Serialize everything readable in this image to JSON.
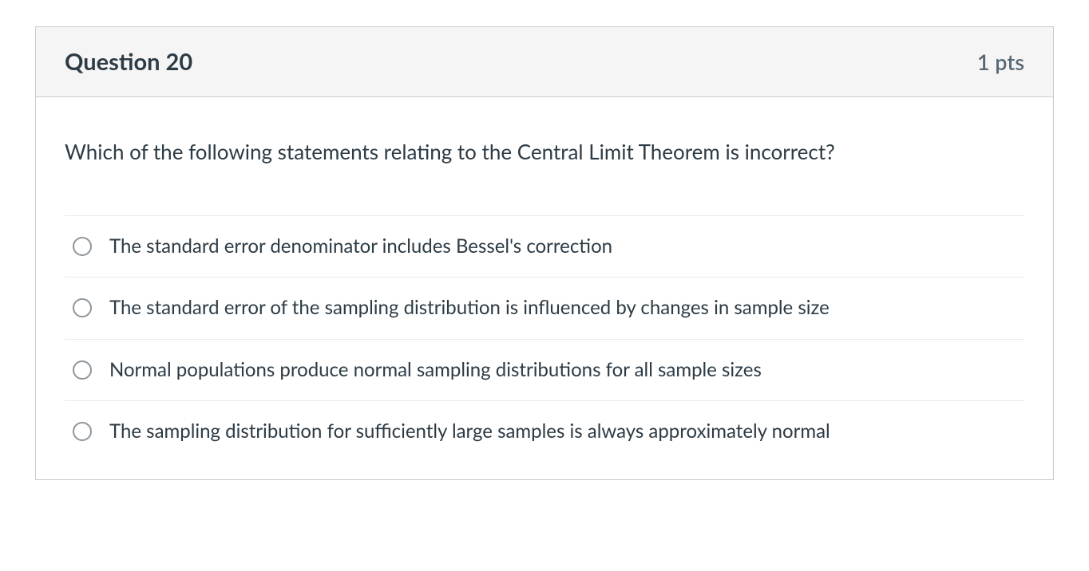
{
  "question": {
    "title": "Question 20",
    "points": "1 pts",
    "prompt": "Which of the following statements relating to the Central Limit Theorem is incorrect?",
    "options": [
      "The standard error denominator includes Bessel's correction",
      "The standard error of the sampling distribution is influenced by changes in sample size",
      "Normal populations produce normal sampling distributions for all sample sizes",
      "The sampling distribution for sufficiently large samples is always approximately normal"
    ]
  },
  "colors": {
    "border": "#c7cdd1",
    "header_bg": "#f5f5f5",
    "text_primary": "#2d3b45",
    "text_secondary": "#586874",
    "divider": "#e8eaec",
    "radio_border": "#8d959c",
    "body_bg": "#ffffff"
  }
}
